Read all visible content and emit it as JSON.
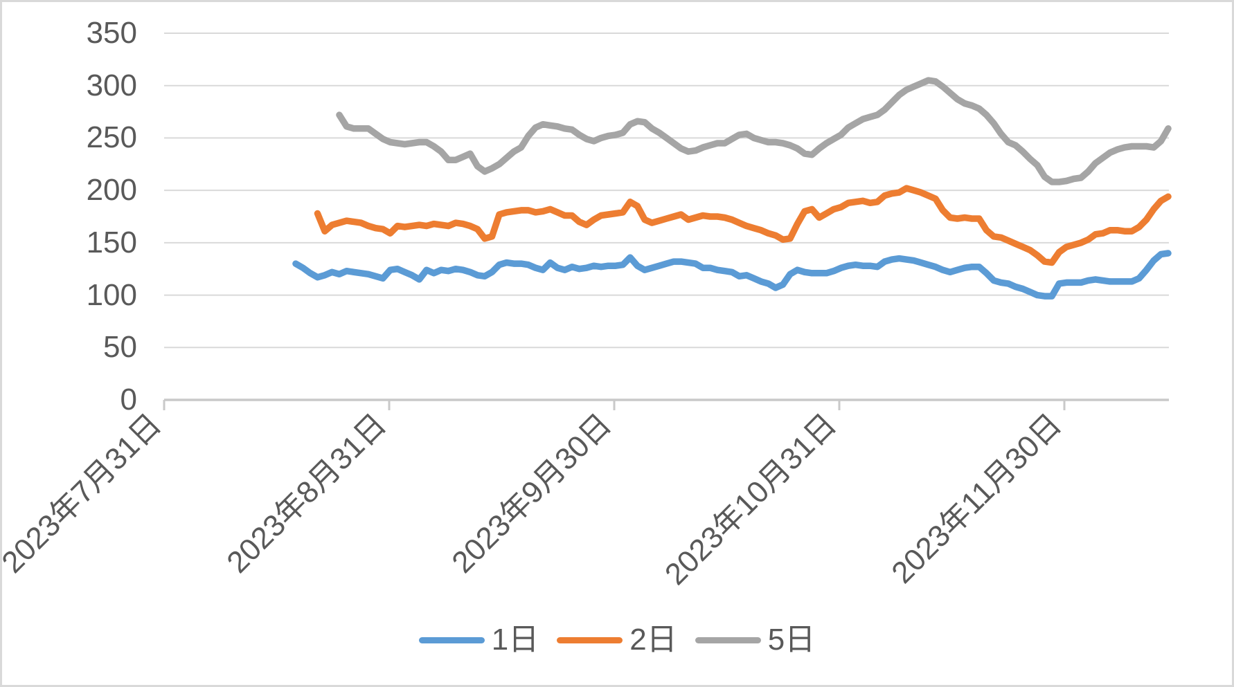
{
  "canvas": {
    "background": "#FFFFFF",
    "border_color": "#D9D9D9"
  },
  "colors": {
    "grid": "#D9D9D9",
    "axis": "#C9C9C9",
    "text": "#595959",
    "series_blue": "#5B9BD5",
    "series_orange": "#ED7D31",
    "series_gray": "#A5A5A5"
  },
  "legend": {
    "items": [
      {
        "label": "1日",
        "color": "#5B9BD5"
      },
      {
        "label": "2日",
        "color": "#ED7D31"
      },
      {
        "label": "5日",
        "color": "#A5A5A5"
      }
    ]
  },
  "chart_data": {
    "type": "line",
    "title": "",
    "xlabel": "",
    "ylabel": "",
    "ylim": [
      0,
      350
    ],
    "y_ticks": [
      0,
      50,
      100,
      150,
      200,
      250,
      300,
      350
    ],
    "x_tick_labels": [
      "2023年7月31日",
      "2023年8月31日",
      "2023年9月30日",
      "2023年10月31日",
      "2023年11月30日"
    ],
    "grid": "horizontal",
    "legend_position": "bottom",
    "series": [
      {
        "name": "1日",
        "color": "#5B9BD5",
        "start_index": 0,
        "values": [
          130,
          126,
          121,
          117,
          119,
          122,
          120,
          123,
          122,
          121,
          120,
          118,
          116,
          124,
          125,
          122,
          119,
          115,
          124,
          121,
          124,
          123,
          125,
          124,
          122,
          119,
          118,
          122,
          129,
          131,
          130,
          130,
          129,
          126,
          124,
          131,
          126,
          124,
          127,
          125,
          126,
          128,
          127,
          128,
          128,
          129,
          136,
          128,
          124,
          126,
          128,
          130,
          132,
          132,
          131,
          130,
          126,
          126,
          124,
          123,
          122,
          118,
          119,
          116,
          113,
          111,
          107,
          110,
          120,
          124,
          122,
          121,
          121,
          121,
          123,
          126,
          128,
          129,
          128,
          128,
          127,
          132,
          134,
          135,
          134,
          133,
          131,
          129,
          127,
          124,
          122,
          124,
          126,
          127,
          127,
          121,
          114,
          112,
          111,
          108,
          106,
          103,
          100,
          99,
          99,
          111,
          112,
          112,
          112,
          114,
          115,
          114,
          113,
          113,
          113,
          113,
          116,
          124,
          133,
          139,
          140
        ]
      },
      {
        "name": "2日",
        "color": "#ED7D31",
        "start_index": 3,
        "values": [
          178,
          161,
          167,
          169,
          171,
          170,
          169,
          166,
          164,
          163,
          159,
          166,
          165,
          166,
          167,
          166,
          168,
          167,
          166,
          169,
          168,
          166,
          163,
          154,
          156,
          177,
          179,
          180,
          181,
          181,
          179,
          180,
          182,
          179,
          176,
          176,
          170,
          167,
          172,
          176,
          177,
          178,
          179,
          189,
          185,
          172,
          169,
          171,
          173,
          175,
          177,
          172,
          174,
          176,
          175,
          175,
          174,
          172,
          169,
          166,
          164,
          162,
          159,
          157,
          153,
          154,
          168,
          180,
          182,
          174,
          178,
          182,
          184,
          188,
          189,
          190,
          188,
          189,
          195,
          197,
          198,
          202,
          200,
          198,
          195,
          192,
          181,
          174,
          173,
          174,
          173,
          173,
          162,
          156,
          155,
          152,
          149,
          146,
          143,
          138,
          132,
          131,
          141,
          146,
          148,
          150,
          153,
          158,
          159,
          162,
          162,
          161,
          161,
          165,
          172,
          182,
          190,
          194
        ]
      },
      {
        "name": "5日",
        "color": "#A5A5A5",
        "start_index": 6,
        "values": [
          272,
          261,
          259,
          259,
          259,
          254,
          249,
          246,
          245,
          244,
          245,
          246,
          246,
          242,
          237,
          229,
          229,
          232,
          235,
          223,
          218,
          221,
          225,
          231,
          237,
          241,
          252,
          260,
          263,
          262,
          261,
          259,
          258,
          253,
          249,
          247,
          250,
          252,
          253,
          255,
          263,
          266,
          265,
          259,
          255,
          250,
          245,
          240,
          237,
          238,
          241,
          243,
          245,
          245,
          249,
          253,
          254,
          250,
          248,
          246,
          246,
          245,
          243,
          240,
          235,
          234,
          240,
          245,
          249,
          253,
          260,
          264,
          268,
          270,
          272,
          277,
          284,
          291,
          296,
          299,
          302,
          305,
          304,
          299,
          293,
          287,
          283,
          281,
          278,
          272,
          264,
          254,
          246,
          243,
          237,
          230,
          224,
          213,
          208,
          208,
          209,
          211,
          212,
          218,
          226,
          231,
          236,
          239,
          241,
          242,
          242,
          242,
          241,
          247,
          259
        ]
      }
    ]
  }
}
